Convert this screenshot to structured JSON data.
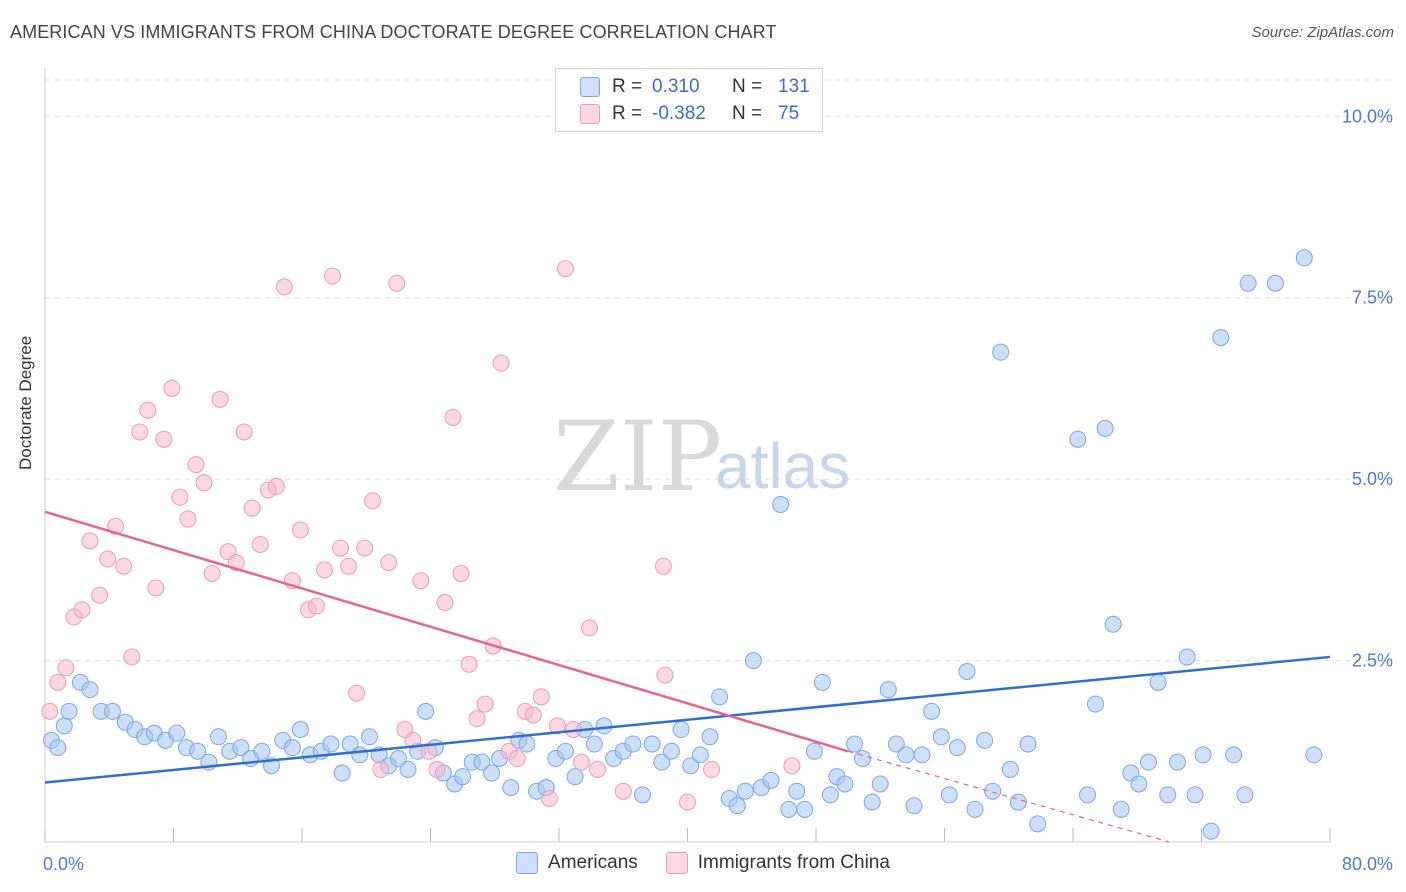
{
  "title": "AMERICAN VS IMMIGRANTS FROM CHINA DOCTORATE DEGREE CORRELATION CHART",
  "source": "Source: ZipAtlas.com",
  "watermark": {
    "zip": "ZIP",
    "atlas": "atlas"
  },
  "colors": {
    "americans_fill": "rgba(164,198,242,0.55)",
    "americans_stroke": "#7aa6e3",
    "americans_line": "#2f6fd0",
    "china_fill": "rgba(248,186,206,0.55)",
    "china_stroke": "#ec9ab6",
    "china_line": "#e4638f",
    "grid": "#dddddd",
    "tick_text": "#4a7cc9"
  },
  "legend": {
    "rows": [
      {
        "series": "Americans",
        "r_label": "R =",
        "r_value": "0.310",
        "n_label": "N =",
        "n_value": "131"
      },
      {
        "series": "Immigrants from China",
        "r_label": "R =",
        "r_value": "-0.382",
        "n_label": "N =",
        "n_value": "75"
      }
    ]
  },
  "chart_data": {
    "type": "scatter",
    "title": "AMERICAN VS IMMIGRANTS FROM CHINA DOCTORATE DEGREE CORRELATION CHART",
    "xlabel": "",
    "ylabel": "Doctorate Degree",
    "xlim": [
      0,
      80
    ],
    "ylim": [
      0,
      10.5
    ],
    "x_tick_labels": [
      "0.0%",
      "80.0%"
    ],
    "y_ticks": [
      2.5,
      5.0,
      7.5,
      10.0
    ],
    "y_tick_labels": [
      "2.5%",
      "5.0%",
      "7.5%",
      "10.0%"
    ],
    "grid": "horizontal dashed",
    "legend_position": "top-center",
    "series": [
      {
        "name": "Americans",
        "trend": {
          "x": [
            0,
            80
          ],
          "y": [
            0.82,
            2.55
          ]
        },
        "points": [
          [
            0.4,
            1.4
          ],
          [
            0.8,
            1.3
          ],
          [
            1.2,
            1.6
          ],
          [
            1.5,
            1.8
          ],
          [
            2.2,
            2.2
          ],
          [
            2.8,
            2.1
          ],
          [
            3.5,
            1.8
          ],
          [
            4.2,
            1.8
          ],
          [
            5.0,
            1.65
          ],
          [
            5.6,
            1.55
          ],
          [
            6.2,
            1.45
          ],
          [
            6.8,
            1.5
          ],
          [
            7.5,
            1.4
          ],
          [
            8.2,
            1.5
          ],
          [
            8.8,
            1.3
          ],
          [
            9.5,
            1.25
          ],
          [
            10.2,
            1.1
          ],
          [
            10.8,
            1.45
          ],
          [
            11.5,
            1.25
          ],
          [
            12.2,
            1.3
          ],
          [
            12.8,
            1.15
          ],
          [
            13.5,
            1.25
          ],
          [
            14.1,
            1.05
          ],
          [
            14.8,
            1.4
          ],
          [
            15.4,
            1.3
          ],
          [
            15.9,
            1.55
          ],
          [
            16.5,
            1.2
          ],
          [
            17.2,
            1.25
          ],
          [
            17.8,
            1.35
          ],
          [
            18.5,
            0.95
          ],
          [
            19.0,
            1.35
          ],
          [
            19.6,
            1.2
          ],
          [
            20.2,
            1.45
          ],
          [
            20.8,
            1.2
          ],
          [
            21.4,
            1.05
          ],
          [
            22.0,
            1.15
          ],
          [
            22.6,
            1.0
          ],
          [
            23.2,
            1.25
          ],
          [
            23.7,
            1.8
          ],
          [
            24.3,
            1.3
          ],
          [
            24.8,
            0.95
          ],
          [
            25.5,
            0.8
          ],
          [
            26.0,
            0.9
          ],
          [
            26.6,
            1.1
          ],
          [
            27.2,
            1.1
          ],
          [
            27.8,
            0.95
          ],
          [
            28.3,
            1.15
          ],
          [
            29.0,
            0.75
          ],
          [
            29.5,
            1.4
          ],
          [
            30.0,
            1.35
          ],
          [
            30.6,
            0.7
          ],
          [
            31.2,
            0.75
          ],
          [
            31.8,
            1.15
          ],
          [
            32.4,
            1.25
          ],
          [
            33.0,
            0.9
          ],
          [
            33.6,
            1.55
          ],
          [
            34.2,
            1.35
          ],
          [
            34.8,
            1.6
          ],
          [
            35.4,
            1.15
          ],
          [
            36.0,
            1.25
          ],
          [
            36.6,
            1.35
          ],
          [
            37.2,
            0.65
          ],
          [
            37.8,
            1.35
          ],
          [
            38.4,
            1.1
          ],
          [
            39.0,
            1.25
          ],
          [
            39.6,
            1.55
          ],
          [
            40.2,
            1.05
          ],
          [
            40.8,
            1.2
          ],
          [
            41.4,
            1.45
          ],
          [
            42.0,
            2.0
          ],
          [
            42.6,
            0.6
          ],
          [
            43.1,
            0.5
          ],
          [
            43.6,
            0.7
          ],
          [
            44.1,
            2.5
          ],
          [
            44.6,
            0.75
          ],
          [
            45.2,
            0.85
          ],
          [
            45.8,
            4.65
          ],
          [
            46.3,
            0.45
          ],
          [
            46.8,
            0.7
          ],
          [
            47.3,
            0.45
          ],
          [
            47.9,
            1.25
          ],
          [
            48.4,
            2.2
          ],
          [
            48.9,
            0.65
          ],
          [
            49.3,
            0.9
          ],
          [
            49.8,
            0.8
          ],
          [
            50.4,
            1.35
          ],
          [
            50.9,
            1.15
          ],
          [
            51.5,
            0.55
          ],
          [
            52.0,
            0.8
          ],
          [
            52.5,
            2.1
          ],
          [
            53.0,
            1.35
          ],
          [
            53.6,
            1.2
          ],
          [
            54.1,
            0.5
          ],
          [
            54.6,
            1.2
          ],
          [
            55.2,
            1.8
          ],
          [
            55.8,
            1.45
          ],
          [
            56.3,
            0.65
          ],
          [
            56.8,
            1.3
          ],
          [
            57.4,
            2.35
          ],
          [
            57.9,
            0.45
          ],
          [
            58.5,
            1.4
          ],
          [
            59.0,
            0.7
          ],
          [
            59.5,
            6.75
          ],
          [
            60.1,
            1.0
          ],
          [
            60.6,
            0.55
          ],
          [
            61.2,
            1.35
          ],
          [
            61.8,
            0.25
          ],
          [
            64.3,
            5.55
          ],
          [
            64.9,
            0.65
          ],
          [
            65.4,
            1.9
          ],
          [
            66.0,
            5.7
          ],
          [
            66.5,
            3.0
          ],
          [
            67.0,
            0.45
          ],
          [
            67.6,
            0.95
          ],
          [
            68.1,
            0.8
          ],
          [
            68.7,
            1.1
          ],
          [
            69.3,
            2.2
          ],
          [
            69.9,
            0.65
          ],
          [
            70.5,
            1.1
          ],
          [
            71.1,
            2.55
          ],
          [
            71.6,
            0.65
          ],
          [
            72.1,
            1.2
          ],
          [
            72.6,
            0.15
          ],
          [
            73.2,
            6.95
          ],
          [
            74.0,
            1.2
          ],
          [
            74.7,
            0.65
          ],
          [
            74.9,
            7.7
          ],
          [
            76.6,
            7.7
          ],
          [
            78.4,
            8.05
          ],
          [
            79.0,
            1.2
          ]
        ]
      },
      {
        "name": "Immigrants from China",
        "trend": {
          "x": [
            0,
            50
          ],
          "y": [
            4.55,
            1.25
          ]
        },
        "trend_dashed": {
          "x": [
            50,
            70
          ],
          "y": [
            1.25,
            0.0
          ]
        },
        "points": [
          [
            0.3,
            1.8
          ],
          [
            0.8,
            2.2
          ],
          [
            1.3,
            2.4
          ],
          [
            1.8,
            3.1
          ],
          [
            2.3,
            3.2
          ],
          [
            2.8,
            4.15
          ],
          [
            3.4,
            3.4
          ],
          [
            3.9,
            3.9
          ],
          [
            4.4,
            4.35
          ],
          [
            4.9,
            3.8
          ],
          [
            5.4,
            2.55
          ],
          [
            5.9,
            5.65
          ],
          [
            6.4,
            5.95
          ],
          [
            6.9,
            3.5
          ],
          [
            7.4,
            5.55
          ],
          [
            7.9,
            6.25
          ],
          [
            8.4,
            4.75
          ],
          [
            8.9,
            4.45
          ],
          [
            9.4,
            5.2
          ],
          [
            9.9,
            4.95
          ],
          [
            10.4,
            3.7
          ],
          [
            10.9,
            6.1
          ],
          [
            11.4,
            4.0
          ],
          [
            11.9,
            3.85
          ],
          [
            12.4,
            5.65
          ],
          [
            12.9,
            4.6
          ],
          [
            13.4,
            4.1
          ],
          [
            13.9,
            4.85
          ],
          [
            14.4,
            4.9
          ],
          [
            14.9,
            7.65
          ],
          [
            15.4,
            3.6
          ],
          [
            15.9,
            4.3
          ],
          [
            16.4,
            3.2
          ],
          [
            16.9,
            3.25
          ],
          [
            17.4,
            3.75
          ],
          [
            17.9,
            7.8
          ],
          [
            18.4,
            4.05
          ],
          [
            18.9,
            3.8
          ],
          [
            19.4,
            2.05
          ],
          [
            19.9,
            4.05
          ],
          [
            20.4,
            4.7
          ],
          [
            20.9,
            1.0
          ],
          [
            21.4,
            3.85
          ],
          [
            21.9,
            7.7
          ],
          [
            22.4,
            1.55
          ],
          [
            22.9,
            1.4
          ],
          [
            23.4,
            3.6
          ],
          [
            23.9,
            1.25
          ],
          [
            24.4,
            1.0
          ],
          [
            24.9,
            3.3
          ],
          [
            25.4,
            5.85
          ],
          [
            25.9,
            3.7
          ],
          [
            26.4,
            2.45
          ],
          [
            26.9,
            1.7
          ],
          [
            27.4,
            1.9
          ],
          [
            27.9,
            2.7
          ],
          [
            28.4,
            6.6
          ],
          [
            28.9,
            1.25
          ],
          [
            29.4,
            1.15
          ],
          [
            29.9,
            1.8
          ],
          [
            30.4,
            1.75
          ],
          [
            30.9,
            2.0
          ],
          [
            31.4,
            0.6
          ],
          [
            31.9,
            1.6
          ],
          [
            32.4,
            7.9
          ],
          [
            32.9,
            1.55
          ],
          [
            33.4,
            1.1
          ],
          [
            33.9,
            2.95
          ],
          [
            34.4,
            1.0
          ],
          [
            36.0,
            0.7
          ],
          [
            38.5,
            3.8
          ],
          [
            38.6,
            2.3
          ],
          [
            40.0,
            0.55
          ],
          [
            41.5,
            1.0
          ],
          [
            46.5,
            1.05
          ]
        ]
      }
    ]
  }
}
